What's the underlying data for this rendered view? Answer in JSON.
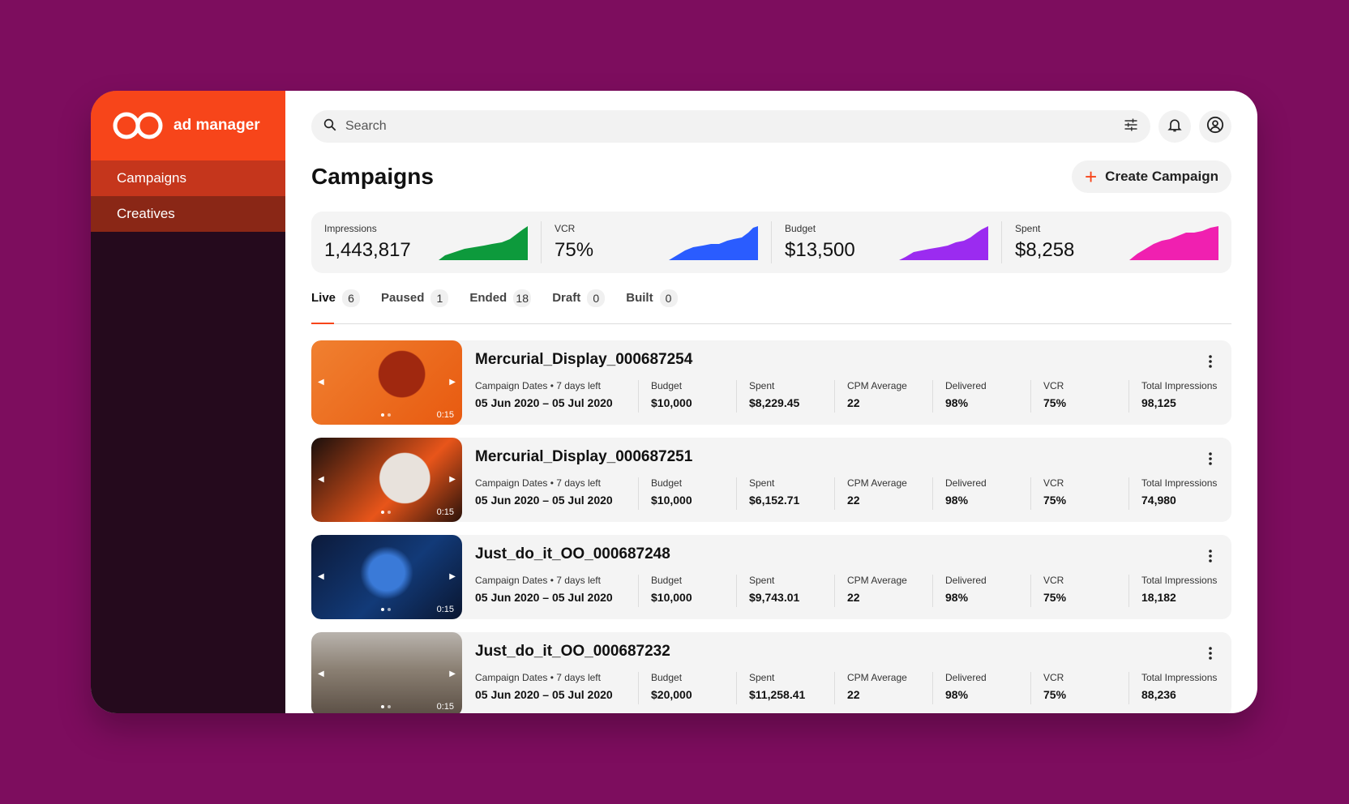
{
  "brand": {
    "name": "ad manager",
    "accent": "#f7451a"
  },
  "sidebar": {
    "items": [
      {
        "label": "Campaigns",
        "active": true
      },
      {
        "label": "Creatives",
        "active": false
      }
    ]
  },
  "search": {
    "placeholder": "Search"
  },
  "header": {
    "title": "Campaigns",
    "create_label": "Create Campaign"
  },
  "stats": [
    {
      "label": "Impressions",
      "value": "1,443,817",
      "color": "#0d9a3c"
    },
    {
      "label": "VCR",
      "value": "75%",
      "color": "#2a5cff"
    },
    {
      "label": "Budget",
      "value": "$13,500",
      "color": "#9b2bf0"
    },
    {
      "label": "Spent",
      "value": "$8,258",
      "color": "#f020b0"
    }
  ],
  "tabs": [
    {
      "label": "Live",
      "count": "6",
      "active": true
    },
    {
      "label": "Paused",
      "count": "1"
    },
    {
      "label": "Ended",
      "count": "18"
    },
    {
      "label": "Draft",
      "count": "0"
    },
    {
      "label": "Built",
      "count": "0"
    }
  ],
  "metric_labels": {
    "dates": "Campaign Dates • 7 days left",
    "budget": "Budget",
    "spent": "Spent",
    "cpm": "CPM Average",
    "delivered": "Delivered",
    "vcr": "VCR",
    "total": "Total Impressions"
  },
  "campaigns": [
    {
      "title": "Mercurial_Display_000687254",
      "duration": "0:15",
      "dates": "05 Jun 2020 – 05 Jul 2020",
      "budget": "$10,000",
      "spent": "$8,229.45",
      "cpm": "22",
      "delivered": "98%",
      "vcr": "75%",
      "total": "98,125"
    },
    {
      "title": "Mercurial_Display_000687251",
      "duration": "0:15",
      "dates": "05 Jun 2020 – 05 Jul 2020",
      "budget": "$10,000",
      "spent": "$6,152.71",
      "cpm": "22",
      "delivered": "98%",
      "vcr": "75%",
      "total": "74,980"
    },
    {
      "title": "Just_do_it_OO_000687248",
      "duration": "0:15",
      "dates": "05 Jun 2020 – 05 Jul 2020",
      "budget": "$10,000",
      "spent": "$9,743.01",
      "cpm": "22",
      "delivered": "98%",
      "vcr": "75%",
      "total": "18,182"
    },
    {
      "title": "Just_do_it_OO_000687232",
      "duration": "0:15",
      "dates": "05 Jun 2020 – 05 Jul 2020",
      "budget": "$20,000",
      "spent": "$11,258.41",
      "cpm": "22",
      "delivered": "98%",
      "vcr": "75%",
      "total": "88,236"
    }
  ]
}
